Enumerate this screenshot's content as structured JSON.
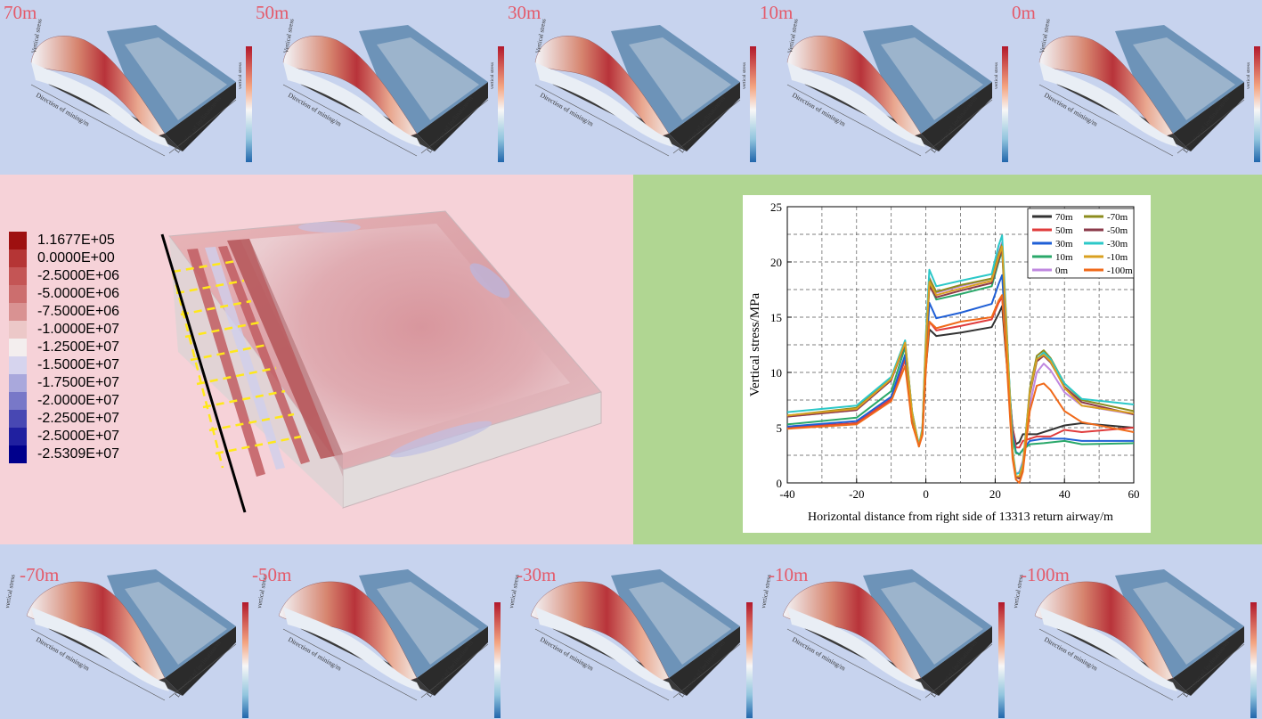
{
  "top_panels": [
    {
      "label": "70m",
      "zlabel": "Vertical stress",
      "xlabel": "Direction of mining/m",
      "ylabel": "Direction of inclination/m",
      "cbar_label": "vertical stress"
    },
    {
      "label": "50m",
      "zlabel": "Vertical stress",
      "xlabel": "Direction of mining/m",
      "ylabel": "Direction of inclination/m",
      "cbar_label": "vertical stress"
    },
    {
      "label": "30m",
      "zlabel": "Vertical stress",
      "xlabel": "Direction of mining/m",
      "ylabel": "Direction of inclination/m",
      "cbar_label": "vertical stress"
    },
    {
      "label": "10m",
      "zlabel": "Vertical stress",
      "xlabel": "Direction of mining/m",
      "ylabel": "Direction of inclination/m",
      "cbar_label": "vertical stress"
    },
    {
      "label": "0m",
      "zlabel": "Vertical stress",
      "xlabel": "Direction of mining/m",
      "ylabel": "Direction of inclination/m",
      "cbar_label": "vertical stress"
    }
  ],
  "bottom_panels": [
    {
      "label": "-70m",
      "zlabel": "vertical stress",
      "xlabel": "Direction of mining/m",
      "ylabel": "Direction of inclination/m"
    },
    {
      "label": "-50m",
      "zlabel": "vertical stress",
      "xlabel": "Direction of mining/m",
      "ylabel": "Direction of inclination/m"
    },
    {
      "label": "-30m",
      "zlabel": "vertical stress",
      "xlabel": "Direction of mining/m",
      "ylabel": "Direction of inclination/m"
    },
    {
      "label": "-10m",
      "zlabel": "vertical stress",
      "xlabel": "Direction of mining/m",
      "ylabel": "Direction of inclination/m"
    },
    {
      "label": "-100m",
      "zlabel": "vertical stress",
      "xlabel": "Direction of mining/m",
      "ylabel": "Direction of inclination/m"
    }
  ],
  "legend": {
    "entries": [
      {
        "label": "1.1677E+05",
        "color": "#9e1010"
      },
      {
        "label": "0.0000E+00",
        "color": "#b53535"
      },
      {
        "label": "-2.5000E+06",
        "color": "#c45555"
      },
      {
        "label": "-5.0000E+06",
        "color": "#cc6e6e"
      },
      {
        "label": "-7.5000E+06",
        "color": "#d99292"
      },
      {
        "label": "-1.0000E+07",
        "color": "#ecc8c8"
      },
      {
        "label": "-1.2500E+07",
        "color": "#f3eeee"
      },
      {
        "label": "-1.5000E+07",
        "color": "#d6d4ee"
      },
      {
        "label": "-1.7500E+07",
        "color": "#a9a8dc"
      },
      {
        "label": "-2.0000E+07",
        "color": "#7878c8"
      },
      {
        "label": "-2.2500E+07",
        "color": "#4848b3"
      },
      {
        "label": "-2.5000E+07",
        "color": "#2020a0"
      },
      {
        "label": "-2.5309E+07",
        "color": "#00008c"
      }
    ]
  },
  "chart_data": {
    "type": "line",
    "title": "",
    "xlabel": "Horizontal distance from right side of 13313 return airway/m",
    "ylabel": "Vertical stress/MPa",
    "xlim": [
      -40,
      60
    ],
    "ylim": [
      0,
      25
    ],
    "xticks": [
      "-40",
      "-20",
      "0",
      "20",
      "40",
      "60"
    ],
    "yticks": [
      "0",
      "5",
      "10",
      "15",
      "20",
      "25"
    ],
    "grid": "dashed",
    "legend_position": "top-right",
    "series": [
      {
        "name": "70m",
        "color": "#333333",
        "points": [
          [
            -40,
            5.0
          ],
          [
            -20,
            5.4
          ],
          [
            -10,
            7.6
          ],
          [
            -6,
            11.2
          ],
          [
            -4,
            5.5
          ],
          [
            -2,
            3.6
          ],
          [
            -1,
            4.4
          ],
          [
            0,
            10.4
          ],
          [
            1,
            13.9
          ],
          [
            3,
            13.3
          ],
          [
            10,
            13.6
          ],
          [
            19,
            14.1
          ],
          [
            21,
            15.3
          ],
          [
            22,
            16.0
          ],
          [
            23,
            12.0
          ],
          [
            25,
            5.0
          ],
          [
            26,
            3.5
          ],
          [
            27,
            3.7
          ],
          [
            28,
            4.4
          ],
          [
            32,
            4.4
          ],
          [
            36,
            4.8
          ],
          [
            40,
            5.2
          ],
          [
            45,
            5.4
          ],
          [
            60,
            5.0
          ]
        ]
      },
      {
        "name": "50m",
        "color": "#e03c3c",
        "points": [
          [
            -40,
            5.0
          ],
          [
            -20,
            5.4
          ],
          [
            -10,
            7.6
          ],
          [
            -6,
            11.2
          ],
          [
            -4,
            5.5
          ],
          [
            -2,
            3.6
          ],
          [
            -1,
            4.4
          ],
          [
            0,
            10.6
          ],
          [
            1,
            14.6
          ],
          [
            3,
            13.8
          ],
          [
            10,
            14.2
          ],
          [
            19,
            14.8
          ],
          [
            21,
            16.3
          ],
          [
            22,
            16.8
          ],
          [
            23,
            12.5
          ],
          [
            25,
            5.0
          ],
          [
            26,
            3.2
          ],
          [
            27,
            3.2
          ],
          [
            28,
            3.8
          ],
          [
            32,
            4.2
          ],
          [
            36,
            4.2
          ],
          [
            40,
            4.8
          ],
          [
            45,
            4.6
          ],
          [
            60,
            5.0
          ]
        ]
      },
      {
        "name": "30m",
        "color": "#1f5fd6",
        "points": [
          [
            -40,
            5.1
          ],
          [
            -20,
            5.6
          ],
          [
            -10,
            7.8
          ],
          [
            -6,
            11.6
          ],
          [
            -4,
            5.7
          ],
          [
            -2,
            3.5
          ],
          [
            -1,
            4.5
          ],
          [
            0,
            11.0
          ],
          [
            1,
            16.3
          ],
          [
            3,
            14.9
          ],
          [
            10,
            15.4
          ],
          [
            19,
            16.2
          ],
          [
            21,
            18.0
          ],
          [
            22,
            18.8
          ],
          [
            23,
            13.6
          ],
          [
            25,
            4.5
          ],
          [
            26,
            2.8
          ],
          [
            27,
            2.6
          ],
          [
            28,
            3.0
          ],
          [
            30,
            3.8
          ],
          [
            34,
            4.0
          ],
          [
            40,
            4.0
          ],
          [
            45,
            3.8
          ],
          [
            50,
            3.8
          ],
          [
            60,
            3.8
          ]
        ]
      },
      {
        "name": "10m",
        "color": "#2aa86a",
        "points": [
          [
            -40,
            5.3
          ],
          [
            -20,
            5.9
          ],
          [
            -10,
            8.3
          ],
          [
            -6,
            12.3
          ],
          [
            -4,
            6.0
          ],
          [
            -2,
            3.5
          ],
          [
            -1,
            4.6
          ],
          [
            0,
            12.0
          ],
          [
            1,
            18.0
          ],
          [
            3,
            16.6
          ],
          [
            10,
            17.1
          ],
          [
            19,
            17.8
          ],
          [
            21,
            20.0
          ],
          [
            22,
            21.0
          ],
          [
            23,
            15.0
          ],
          [
            25,
            4.0
          ],
          [
            26,
            2.7
          ],
          [
            27,
            2.6
          ],
          [
            28,
            3.0
          ],
          [
            30,
            3.5
          ],
          [
            34,
            3.6
          ],
          [
            40,
            3.8
          ],
          [
            45,
            3.5
          ],
          [
            60,
            3.6
          ]
        ]
      },
      {
        "name": "0m",
        "color": "#c088e0",
        "points": [
          [
            -40,
            6.0
          ],
          [
            -20,
            6.6
          ],
          [
            -10,
            9.3
          ],
          [
            -6,
            12.7
          ],
          [
            -4,
            6.4
          ],
          [
            -2,
            3.3
          ],
          [
            -1,
            4.8
          ],
          [
            0,
            12.8
          ],
          [
            1,
            18.6
          ],
          [
            3,
            17.2
          ],
          [
            10,
            17.8
          ],
          [
            19,
            18.5
          ],
          [
            21,
            20.9
          ],
          [
            22,
            21.8
          ],
          [
            23,
            15.8
          ],
          [
            25,
            2.8
          ],
          [
            26,
            0.8
          ],
          [
            27,
            1.0
          ],
          [
            28,
            2.0
          ],
          [
            30,
            7.0
          ],
          [
            32,
            10.0
          ],
          [
            34,
            10.8
          ],
          [
            36,
            10.2
          ],
          [
            40,
            8.2
          ],
          [
            45,
            7.0
          ],
          [
            60,
            6.2
          ]
        ]
      },
      {
        "name": "-70m",
        "color": "#8c8c1e",
        "points": [
          [
            -40,
            6.1
          ],
          [
            -20,
            6.8
          ],
          [
            -10,
            9.5
          ],
          [
            -6,
            12.8
          ],
          [
            -4,
            6.5
          ],
          [
            -2,
            3.3
          ],
          [
            -1,
            4.8
          ],
          [
            0,
            12.9
          ],
          [
            1,
            18.5
          ],
          [
            3,
            17.3
          ],
          [
            10,
            17.9
          ],
          [
            19,
            18.5
          ],
          [
            21,
            20.7
          ],
          [
            22,
            21.6
          ],
          [
            23,
            15.8
          ],
          [
            25,
            2.8
          ],
          [
            26,
            0.5
          ],
          [
            27,
            0.4
          ],
          [
            28,
            1.5
          ],
          [
            30,
            8.5
          ],
          [
            32,
            11.5
          ],
          [
            34,
            12.0
          ],
          [
            36,
            11.3
          ],
          [
            40,
            9.0
          ],
          [
            45,
            7.5
          ],
          [
            60,
            6.5
          ]
        ]
      },
      {
        "name": "-50m",
        "color": "#8b3a4a",
        "points": [
          [
            -40,
            6.0
          ],
          [
            -20,
            6.6
          ],
          [
            -10,
            9.3
          ],
          [
            -6,
            12.6
          ],
          [
            -4,
            6.4
          ],
          [
            -2,
            3.3
          ],
          [
            -1,
            4.8
          ],
          [
            0,
            12.5
          ],
          [
            1,
            17.8
          ],
          [
            3,
            16.8
          ],
          [
            10,
            17.4
          ],
          [
            19,
            18.1
          ],
          [
            21,
            20.2
          ],
          [
            22,
            21.2
          ],
          [
            23,
            15.4
          ],
          [
            25,
            2.8
          ],
          [
            26,
            0.5
          ],
          [
            27,
            0.4
          ],
          [
            28,
            1.4
          ],
          [
            30,
            8.0
          ],
          [
            32,
            11.0
          ],
          [
            34,
            11.5
          ],
          [
            36,
            10.9
          ],
          [
            40,
            8.7
          ],
          [
            45,
            7.3
          ],
          [
            60,
            6.2
          ]
        ]
      },
      {
        "name": "-30m",
        "color": "#2cc8c8",
        "points": [
          [
            -40,
            6.4
          ],
          [
            -20,
            7.0
          ],
          [
            -10,
            9.6
          ],
          [
            -6,
            12.9
          ],
          [
            -4,
            6.5
          ],
          [
            -2,
            3.4
          ],
          [
            -1,
            5.0
          ],
          [
            0,
            13.4
          ],
          [
            1,
            19.3
          ],
          [
            3,
            17.8
          ],
          [
            10,
            18.3
          ],
          [
            19,
            18.9
          ],
          [
            21,
            21.5
          ],
          [
            22,
            22.4
          ],
          [
            23,
            16.2
          ],
          [
            25,
            3.0
          ],
          [
            26,
            0.8
          ],
          [
            27,
            0.9
          ],
          [
            28,
            1.8
          ],
          [
            30,
            8.2
          ],
          [
            32,
            11.2
          ],
          [
            34,
            11.8
          ],
          [
            36,
            11.2
          ],
          [
            40,
            9.0
          ],
          [
            45,
            7.6
          ],
          [
            60,
            7.1
          ]
        ]
      },
      {
        "name": "-10m",
        "color": "#d9a020",
        "points": [
          [
            -40,
            6.1
          ],
          [
            -20,
            6.7
          ],
          [
            -10,
            9.4
          ],
          [
            -6,
            12.7
          ],
          [
            -4,
            6.4
          ],
          [
            -2,
            3.3
          ],
          [
            -1,
            4.8
          ],
          [
            0,
            12.7
          ],
          [
            1,
            18.2
          ],
          [
            3,
            17.0
          ],
          [
            10,
            17.6
          ],
          [
            19,
            18.3
          ],
          [
            21,
            20.5
          ],
          [
            22,
            21.4
          ],
          [
            23,
            15.6
          ],
          [
            25,
            2.8
          ],
          [
            26,
            0.6
          ],
          [
            27,
            0.6
          ],
          [
            28,
            1.6
          ],
          [
            30,
            8.2
          ],
          [
            32,
            11.2
          ],
          [
            34,
            11.6
          ],
          [
            36,
            11.0
          ],
          [
            40,
            8.6
          ],
          [
            45,
            7.0
          ],
          [
            60,
            6.3
          ]
        ]
      },
      {
        "name": "-100m",
        "color": "#f06a1a",
        "points": [
          [
            -40,
            4.9
          ],
          [
            -20,
            5.3
          ],
          [
            -10,
            7.4
          ],
          [
            -6,
            10.6
          ],
          [
            -4,
            5.4
          ],
          [
            -2,
            3.3
          ],
          [
            -1,
            4.3
          ],
          [
            0,
            10.2
          ],
          [
            1,
            14.6
          ],
          [
            3,
            14.0
          ],
          [
            10,
            14.6
          ],
          [
            19,
            15.0
          ],
          [
            21,
            16.5
          ],
          [
            22,
            17.0
          ],
          [
            23,
            12.5
          ],
          [
            25,
            2.2
          ],
          [
            26,
            0.3
          ],
          [
            27,
            0.0
          ],
          [
            28,
            1.0
          ],
          [
            30,
            6.5
          ],
          [
            32,
            8.8
          ],
          [
            34,
            9.0
          ],
          [
            36,
            8.4
          ],
          [
            40,
            6.5
          ],
          [
            45,
            5.5
          ],
          [
            60,
            4.6
          ]
        ]
      }
    ]
  }
}
